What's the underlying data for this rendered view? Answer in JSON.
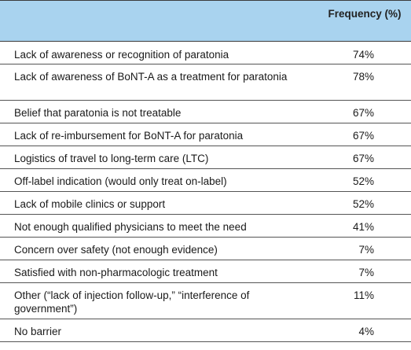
{
  "table": {
    "header": {
      "frequency_label": "Frequency (%)"
    },
    "rows": [
      {
        "label": "Lack of awareness or recognition of paratonia",
        "value": "74%"
      },
      {
        "label": "Lack of awareness of BoNT-A as a treatment for paratonia",
        "value": "78%"
      },
      {
        "label": "Belief that paratonia is not treatable",
        "value": "67%"
      },
      {
        "label": "Lack of re-imbursement for BoNT-A for paratonia",
        "value": "67%"
      },
      {
        "label": "Logistics of travel to long-term care (LTC)",
        "value": "67%"
      },
      {
        "label": "Off-label indication (would only treat on-label)",
        "value": "52%"
      },
      {
        "label": "Lack of mobile clinics or support",
        "value": "52%"
      },
      {
        "label": "Not enough qualified physicians to meet the need",
        "value": "41%"
      },
      {
        "label": "Concern over safety (not enough evidence)",
        "value": "7%"
      },
      {
        "label": "Satisfied with non-pharmacologic treatment",
        "value": "7%"
      },
      {
        "label": "Other (“lack of injection follow-up,” “interference of government”)",
        "value": "11%"
      },
      {
        "label": "No barrier",
        "value": "4%"
      }
    ]
  }
}
